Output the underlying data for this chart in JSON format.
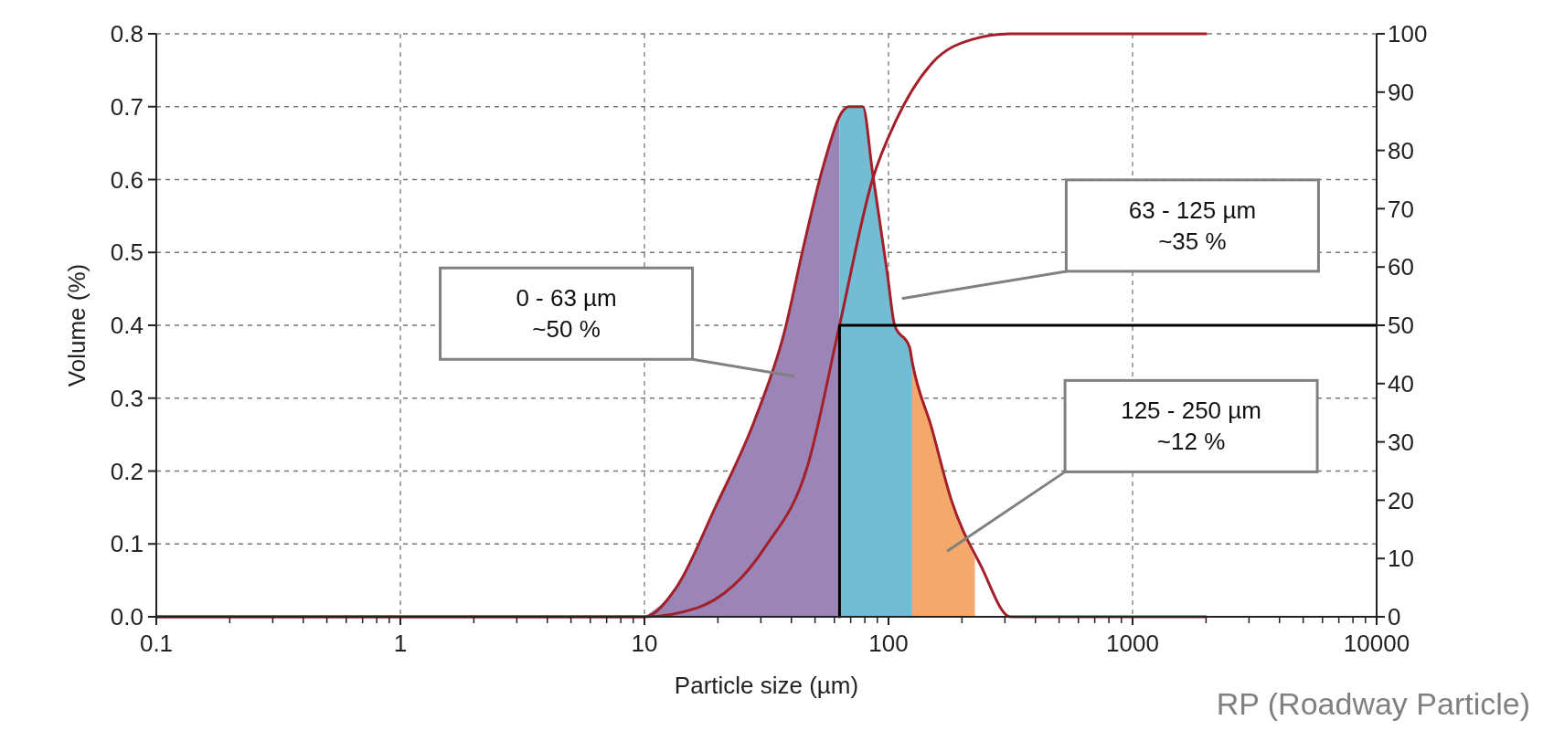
{
  "chart_data": {
    "type": "line",
    "xlabel": "Particle size (µm)",
    "ylabel": "Volume (%)",
    "log": "x",
    "grid": true,
    "xlim": [
      0.1,
      10000
    ],
    "xticks": [
      0.1,
      {
        "value": 0.2,
        "label": null
      },
      {
        "value": 0.3,
        "label": null
      },
      {
        "value": 0.4,
        "label": null
      },
      {
        "value": 0.5,
        "label": null
      },
      {
        "value": 0.6,
        "label": null
      },
      {
        "value": 0.7,
        "label": null
      },
      {
        "value": 0.8,
        "label": null
      },
      {
        "value": 0.9,
        "label": null
      },
      1,
      {
        "value": 2,
        "label": null
      },
      {
        "value": 3,
        "label": null
      },
      {
        "value": 4,
        "label": null
      },
      {
        "value": 5,
        "label": null
      },
      {
        "value": 6,
        "label": null
      },
      {
        "value": 7,
        "label": null
      },
      {
        "value": 8,
        "label": null
      },
      {
        "value": 9,
        "label": null
      },
      10,
      {
        "value": 20,
        "label": null
      },
      {
        "value": 30,
        "label": null
      },
      {
        "value": 40,
        "label": null
      },
      {
        "value": 50,
        "label": null
      },
      {
        "value": 60,
        "label": null
      },
      {
        "value": 70,
        "label": null
      },
      {
        "value": 80,
        "label": null
      },
      {
        "value": 90,
        "label": null
      },
      100,
      {
        "value": 200,
        "label": null
      },
      {
        "value": 300,
        "label": null
      },
      {
        "value": 400,
        "label": null
      },
      {
        "value": 500,
        "label": null
      },
      {
        "value": 600,
        "label": null
      },
      {
        "value": 700,
        "label": null
      },
      {
        "value": 800,
        "label": null
      },
      {
        "value": 900,
        "label": null
      },
      1000,
      {
        "value": 2000,
        "label": null
      },
      {
        "value": 3000,
        "label": null
      },
      {
        "value": 4000,
        "label": null
      },
      {
        "value": 5000,
        "label": null
      },
      {
        "value": 6000,
        "label": null
      },
      {
        "value": 7000,
        "label": null
      },
      {
        "value": 8000,
        "label": null
      },
      {
        "value": 9000,
        "label": null
      },
      10000
    ],
    "ylim": [
      0,
      0.8
    ],
    "yticks": [
      {
        "value": 0,
        "label": "0.0"
      },
      {
        "value": 0.1,
        "label": "0.1"
      },
      {
        "value": 0.2,
        "label": "0.2"
      },
      {
        "value": 0.3,
        "label": "0.3"
      },
      {
        "value": 0.4,
        "label": "0.4"
      },
      {
        "value": 0.5,
        "label": "0.5"
      },
      {
        "value": 0.6,
        "label": "0.6"
      },
      {
        "value": 0.7,
        "label": "0.7"
      },
      {
        "value": 0.8,
        "label": "0.8"
      }
    ],
    "y2lim": [
      0,
      100
    ],
    "y2ticks": [
      0,
      10,
      20,
      30,
      40,
      50,
      60,
      70,
      80,
      90,
      100
    ],
    "series": [
      {
        "type": "area",
        "color": "#9b84b6",
        "x": [
          10,
          13.5,
          19.5,
          28.3,
          37.4,
          45,
          54.2,
          63
        ],
        "values": [
          0,
          0.04,
          0.15,
          0.27,
          0.39,
          0.51,
          0.62,
          0.69
        ]
      },
      {
        "type": "area",
        "color": "#72bcd4",
        "x": [
          63,
          65.3,
          69,
          78.5,
          86,
          99,
          106,
          122,
          125
        ],
        "values": [
          0.69,
          0.695,
          0.7,
          0.7,
          0.61,
          0.47,
          0.4,
          0.37,
          0.35
        ]
      },
      {
        "type": "area",
        "color": "#f4a96a",
        "x": [
          125,
          150,
          181,
          226
        ],
        "values": [
          0.35,
          0.26,
          0.16,
          0.08
        ]
      },
      {
        "color": "#a3202a",
        "x": [
          0.1,
          10,
          13.5,
          19.5,
          28.3,
          37.4,
          45,
          54.2,
          65.3,
          69,
          78.5,
          86,
          99,
          106,
          122,
          125,
          150,
          181,
          239,
          316,
          2000
        ],
        "values": [
          0,
          0,
          0.04,
          0.15,
          0.27,
          0.39,
          0.51,
          0.62,
          0.695,
          0.7,
          0.7,
          0.61,
          0.47,
          0.4,
          0.37,
          0.35,
          0.26,
          0.16,
          0.07,
          0,
          0
        ]
      },
      {
        "color": "#a3202a",
        "axis": "y2",
        "x": [
          0.1,
          10,
          16.4,
          31.3,
          46.7,
          63,
          86,
          107,
          151,
          219,
          316,
          2000
        ],
        "values": [
          0,
          0,
          1.5,
          12,
          26,
          50,
          75,
          85,
          95,
          99,
          100,
          100
        ]
      },
      {
        "color": "#000000",
        "axis": "y2",
        "x": [
          63,
          63,
          10000
        ],
        "values": [
          0,
          50,
          50
        ]
      }
    ],
    "annotations": [
      "0 - 63 µm\n~50 %",
      "63 - 125 µm\n~35 %",
      "125 - 250 µm\n~12 %",
      "RP (Roadway Particle)"
    ]
  }
}
